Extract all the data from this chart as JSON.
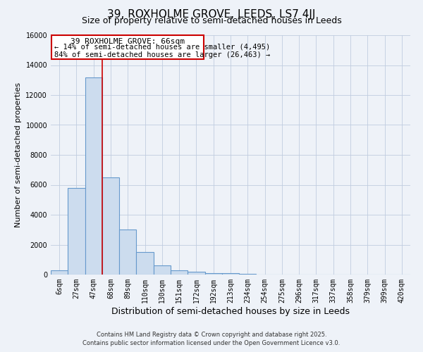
{
  "title": "39, ROXHOLME GROVE, LEEDS, LS7 4JJ",
  "subtitle": "Size of property relative to semi-detached houses in Leeds",
  "xlabel": "Distribution of semi-detached houses by size in Leeds",
  "ylabel": "Number of semi-detached properties",
  "bin_labels": [
    "6sqm",
    "27sqm",
    "47sqm",
    "68sqm",
    "89sqm",
    "110sqm",
    "130sqm",
    "151sqm",
    "172sqm",
    "192sqm",
    "213sqm",
    "234sqm",
    "254sqm",
    "275sqm",
    "296sqm",
    "317sqm",
    "337sqm",
    "358sqm",
    "379sqm",
    "399sqm",
    "420sqm"
  ],
  "bar_values": [
    300,
    5800,
    13200,
    6500,
    3000,
    1500,
    600,
    300,
    200,
    100,
    100,
    50,
    20,
    10,
    5,
    3,
    2,
    1,
    1,
    1,
    0
  ],
  "bar_color": "#ccdcee",
  "bar_edge_color": "#6699cc",
  "red_line_bin": 3,
  "annotation_line1": "39 ROXHOLME GROVE: 66sqm",
  "annotation_line2": "← 14% of semi-detached houses are smaller (4,495)",
  "annotation_line3": "84% of semi-detached houses are larger (26,463) →",
  "ylim": [
    0,
    16000
  ],
  "yticks": [
    0,
    2000,
    4000,
    6000,
    8000,
    10000,
    12000,
    14000,
    16000
  ],
  "footer1": "Contains HM Land Registry data © Crown copyright and database right 2025.",
  "footer2": "Contains public sector information licensed under the Open Government Licence v3.0.",
  "bg_color": "#eef2f8",
  "plot_bg_color": "#eef2f8",
  "grid_color": "#c0cce0",
  "red_line_color": "#cc0000",
  "annotation_box_color": "#ffffff",
  "annotation_box_edge": "#cc0000",
  "title_fontsize": 11,
  "subtitle_fontsize": 9,
  "tick_fontsize": 7,
  "ylabel_fontsize": 8,
  "xlabel_fontsize": 9,
  "annotation_fontsize": 8,
  "footer_fontsize": 6
}
